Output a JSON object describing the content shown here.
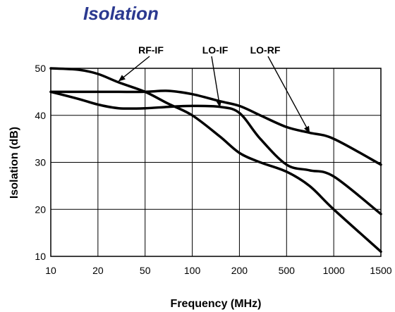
{
  "chart_data": {
    "type": "line",
    "title": "Isolation",
    "xlabel": "Frequency (MHz)",
    "ylabel": "Isolation (dB)",
    "x_ticks": [
      "10",
      "20",
      "50",
      "100",
      "200",
      "500",
      "1000",
      "1500"
    ],
    "y_ticks": [
      10,
      20,
      30,
      40,
      50
    ],
    "ylim": [
      10,
      50
    ],
    "grid": true,
    "series": [
      {
        "name": "RF-IF",
        "x": [
          10,
          15,
          20,
          30,
          50,
          70,
          100,
          150,
          200,
          300,
          500,
          700,
          1000,
          1500
        ],
        "y": [
          50,
          49.7,
          48.8,
          47,
          45,
          42.5,
          40,
          35.5,
          32,
          30,
          28,
          25,
          20,
          11
        ]
      },
      {
        "name": "LO-IF",
        "x": [
          10,
          15,
          20,
          30,
          50,
          70,
          100,
          150,
          200,
          300,
          500,
          700,
          1000,
          1500
        ],
        "y": [
          45,
          43.5,
          42.3,
          41.5,
          41.5,
          41.8,
          42,
          41.8,
          40.5,
          35,
          29.5,
          28.3,
          27,
          19
        ]
      },
      {
        "name": "LO-RF",
        "x": [
          10,
          15,
          20,
          30,
          50,
          70,
          100,
          150,
          200,
          300,
          500,
          700,
          1000,
          1500
        ],
        "y": [
          45,
          45,
          45,
          45,
          45,
          45.2,
          44.5,
          43,
          42,
          40,
          37.5,
          36.3,
          35,
          29.5
        ]
      }
    ],
    "annotations": [
      {
        "text": "RF-IF",
        "target_x": 30,
        "target_y": 47.3
      },
      {
        "text": "LO-IF",
        "target_x": 150,
        "target_y": 41.8
      },
      {
        "text": "LO-RF",
        "target_x": 700,
        "target_y": 36.3
      }
    ]
  }
}
